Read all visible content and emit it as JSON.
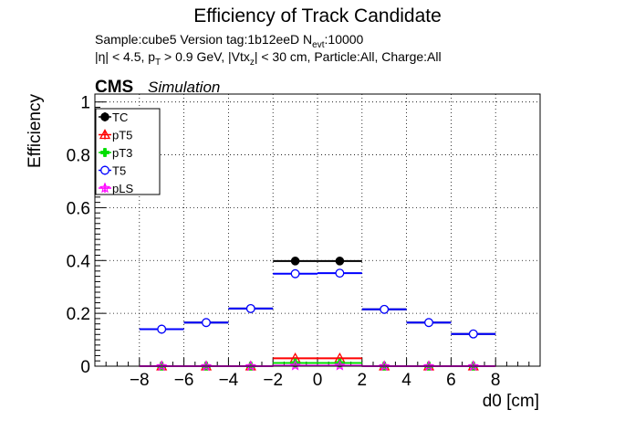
{
  "chart_data": {
    "type": "scatter",
    "title": "Efficiency of Track Candidate",
    "subtitle": {
      "line1": {
        "text_before_sub": "Sample:cube5   Version tag:1b12eeD  N",
        "sub": "evt",
        "text_after_sub": ":10000"
      },
      "line2": {
        "p1": "|η| < 4.5, p",
        "s1": "T",
        "p2": " > 0.9 GeV, |Vtx",
        "s2": "z",
        "p3": "| < 30 cm, Particle:All, Charge:All"
      }
    },
    "badge": {
      "cms": "CMS",
      "sim": "Simulation"
    },
    "xlabel": "d0 [cm]",
    "ylabel": "Efficiency",
    "xlim": [
      -10,
      10
    ],
    "ylim": [
      0,
      1.03
    ],
    "xticks": [
      -8,
      -6,
      -4,
      -2,
      0,
      2,
      4,
      6,
      8
    ],
    "xtick_labels": [
      "−8",
      "−6",
      "−4",
      "−2",
      "0",
      "2",
      "4",
      "6",
      "8"
    ],
    "yticks": [
      0,
      0.2,
      0.4,
      0.6,
      0.8,
      1
    ],
    "ytick_labels": [
      "0",
      "0.2",
      "0.4",
      "0.6",
      "0.8",
      "1"
    ],
    "grid": true,
    "legend_position": "top-left",
    "bin_edges": [
      -8,
      -6,
      -4,
      -2,
      0,
      2,
      4,
      6,
      8
    ],
    "x": [
      -7,
      -5,
      -3,
      -1,
      1,
      3,
      5,
      7
    ],
    "series": [
      {
        "name": "TC",
        "color": "#000000",
        "marker": "filled-circle",
        "values": [
          0.14,
          0.165,
          0.218,
          0.398,
          0.398,
          0.215,
          0.165,
          0.122
        ],
        "errors": [
          0.016,
          0.008,
          0.008,
          0.007,
          0.007,
          0.008,
          0.008,
          0.016
        ]
      },
      {
        "name": "pT5",
        "color": "#ff0000",
        "marker": "open-triangle",
        "values": [
          0,
          0,
          0,
          0.03,
          0.03,
          0,
          0,
          0
        ],
        "errors": [
          0,
          0,
          0,
          0.004,
          0.004,
          0,
          0,
          0
        ]
      },
      {
        "name": "pT3",
        "color": "#00dd00",
        "marker": "filled-cross",
        "values": [
          0,
          0,
          0,
          0.012,
          0.012,
          0,
          0,
          0
        ],
        "errors": [
          0,
          0,
          0,
          0.002,
          0.002,
          0,
          0,
          0
        ]
      },
      {
        "name": "T5",
        "color": "#0000ff",
        "marker": "open-circle",
        "values": [
          0.14,
          0.165,
          0.218,
          0.35,
          0.352,
          0.215,
          0.165,
          0.122
        ],
        "errors": [
          0.016,
          0.008,
          0.008,
          0.007,
          0.007,
          0.008,
          0.008,
          0.016
        ]
      },
      {
        "name": "pLS",
        "color": "#ff00ff",
        "marker": "open-star",
        "values": [
          0,
          0,
          0,
          0.002,
          0.002,
          0,
          0,
          0
        ],
        "errors": [
          0,
          0,
          0,
          0.001,
          0.001,
          0,
          0,
          0
        ]
      }
    ]
  }
}
